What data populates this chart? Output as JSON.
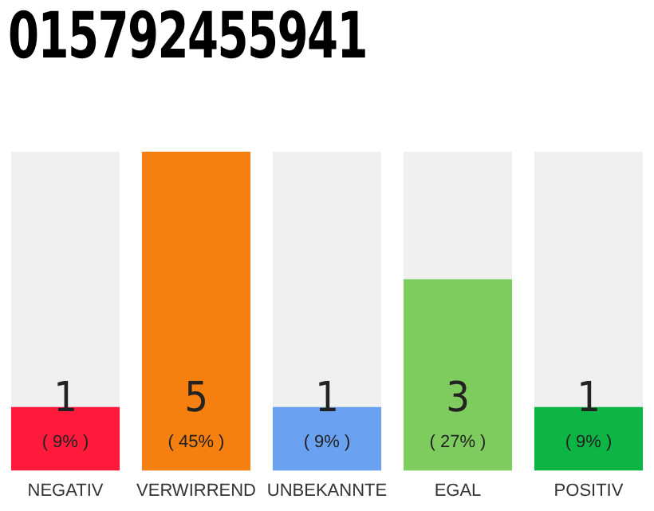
{
  "chart_data": {
    "type": "bar",
    "title": "015792455941",
    "categories": [
      "NEGATIV",
      "VERWIRREND",
      "UNBEKANNTE",
      "EGAL",
      "POSITIV"
    ],
    "values": [
      1,
      5,
      1,
      3,
      1
    ],
    "colors": [
      "#ff1a3c",
      "#f57f0f",
      "#6aa1f0",
      "#7ecb5e",
      "#0db544"
    ],
    "data_labels": true,
    "annotations": [
      "( 9% )",
      "( 45% )",
      "( 9% )",
      "( 27% )",
      "( 9% )"
    ],
    "grid": false,
    "legend": false
  }
}
